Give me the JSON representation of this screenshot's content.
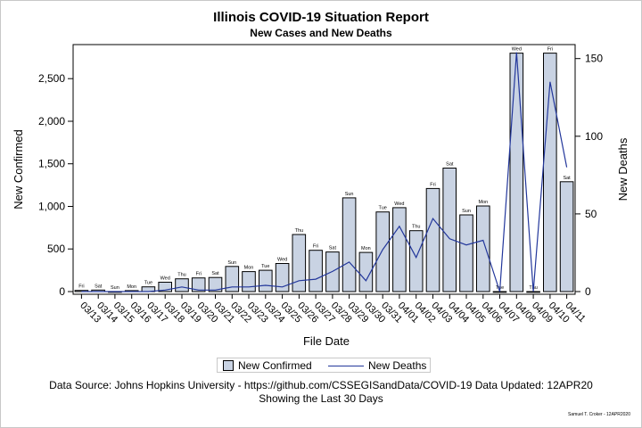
{
  "title": "Illinois COVID-19 Situation Report",
  "subtitle": "New Cases and New Deaths",
  "footnote1": "Data Source: Johns Hopkins University - https://github.com/CSSEGISandData/COVID-19  Data Updated: 12APR20",
  "footnote2": "Showing the Last 30 Days",
  "credit": "Samuel T. Croker - 12APR2020",
  "colors": {
    "bar_fill": "#c9d3e3",
    "bar_stroke": "#000000",
    "line": "#23379b"
  },
  "chart_data": {
    "type": "bar",
    "xlabel": "File Date",
    "ylabel": "New Confirmed",
    "y2label": "New Deaths",
    "ylim": [
      0,
      2900
    ],
    "y2lim": [
      0,
      159
    ],
    "yticks": [
      0,
      500,
      1000,
      1500,
      2000,
      2500
    ],
    "yticklabels": [
      "0",
      "500",
      "1,000",
      "1,500",
      "2,000",
      "2,500"
    ],
    "y2ticks": [
      0,
      50,
      100,
      150
    ],
    "y2ticklabels": [
      "0",
      "50",
      "100",
      "150"
    ],
    "grid": false,
    "legend": "bottom",
    "categories": [
      "03/13",
      "03/14",
      "03/15",
      "03/16",
      "03/17",
      "03/18",
      "03/19",
      "03/20",
      "03/21",
      "03/22",
      "03/23",
      "03/24",
      "03/25",
      "03/26",
      "03/27",
      "03/28",
      "03/29",
      "03/30",
      "03/31",
      "04/01",
      "04/02",
      "04/03",
      "04/04",
      "04/05",
      "04/06",
      "04/07",
      "04/08",
      "04/09",
      "04/10",
      "04/11"
    ],
    "day_labels": [
      "Fri",
      "Sat",
      "Sun",
      "Mon",
      "Tue",
      "Wed",
      "Thu",
      "Fri",
      "Sat",
      "Sun",
      "Mon",
      "Tue",
      "Wed",
      "Thu",
      "Fri",
      "Sat",
      "Sun",
      "Mon",
      "Tue",
      "Wed",
      "Thu",
      "Fri",
      "Sat",
      "Sun",
      "Mon",
      "Tue",
      "Wed",
      "Thu",
      "Fri",
      "Sat"
    ],
    "series": [
      {
        "name": "New Confirmed",
        "type": "bar",
        "axis": "left",
        "values": [
          14,
          18,
          0,
          12,
          55,
          110,
          150,
          160,
          165,
          295,
          235,
          250,
          330,
          670,
          485,
          465,
          1100,
          460,
          935,
          985,
          715,
          1210,
          1450,
          900,
          1005,
          0,
          2800,
          0,
          2800,
          1290
        ]
      },
      {
        "name": "New Deaths",
        "type": "line",
        "axis": "right",
        "values": [
          0,
          0,
          0,
          0,
          0,
          1,
          3,
          1,
          1,
          3,
          3,
          4,
          3,
          7,
          8,
          13,
          19,
          7,
          27,
          42,
          22,
          47,
          34,
          30,
          33,
          0,
          154,
          0,
          135,
          80
        ]
      }
    ]
  }
}
